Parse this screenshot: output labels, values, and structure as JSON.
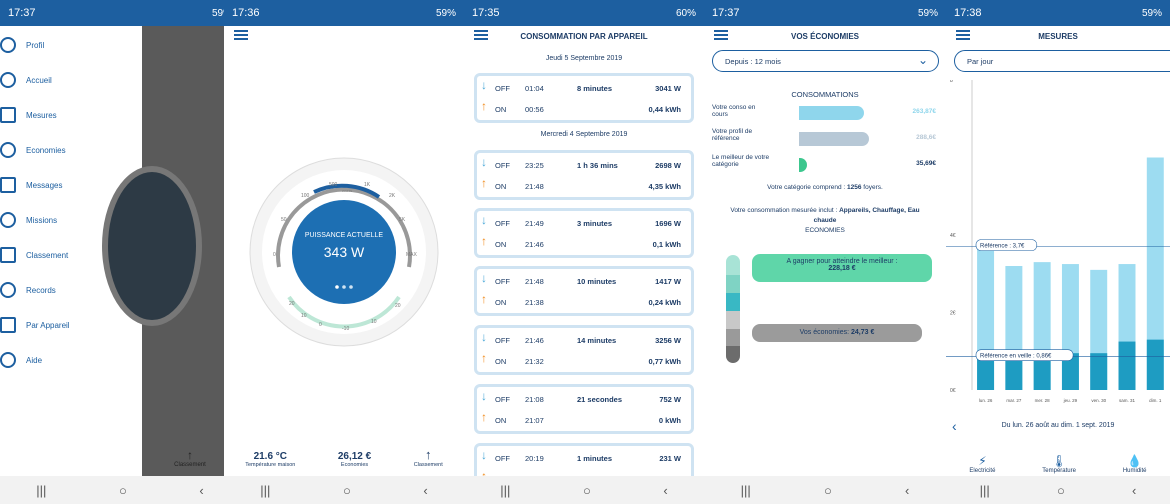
{
  "phones": [
    {
      "status": {
        "time": "17:37",
        "battery": "59%"
      },
      "menu": [
        "Profil",
        "Accueil",
        "Mesures",
        "Economies",
        "Messages",
        "Missions",
        "Classement",
        "Records",
        "Par Appareil",
        "Aide"
      ],
      "dim_label": "Classement"
    },
    {
      "status": {
        "time": "17:36",
        "battery": "59%"
      },
      "dial": {
        "title": "PUISSANCE ACTUELLE",
        "value": "343 W",
        "ticks": [
          "0",
          "50",
          "100",
          "500",
          "1K",
          "2K",
          "5K",
          "MAX"
        ],
        "unit": "WATTS",
        "temp_ticks": [
          "20",
          "10",
          "0",
          "-10",
          "10",
          "20"
        ]
      },
      "footer": [
        {
          "value": "21.6 °C",
          "label": "Température maison"
        },
        {
          "value": "26,12 €",
          "label": "Economies"
        },
        {
          "value": "",
          "label": "Classement"
        }
      ]
    },
    {
      "status": {
        "time": "17:35",
        "battery": "60%"
      },
      "title": "CONSOMMATION PAR APPAREIL",
      "dates": [
        "Jeudi 5 Septembre 2019",
        "Mercredi 4 Septembre 2019"
      ],
      "cards": [
        {
          "off_time": "01:04",
          "on_time": "00:56",
          "duration": "8 minutes",
          "watts": "3041 W",
          "kwh": "0,44 kWh"
        },
        {
          "off_time": "23:25",
          "on_time": "21:48",
          "duration": "1 h 36 mins",
          "watts": "2698 W",
          "kwh": "4,35 kWh"
        },
        {
          "off_time": "21:49",
          "on_time": "21:46",
          "duration": "3 minutes",
          "watts": "1696 W",
          "kwh": "0,1 kWh"
        },
        {
          "off_time": "21:48",
          "on_time": "21:38",
          "duration": "10 minutes",
          "watts": "1417 W",
          "kwh": "0,24 kWh"
        },
        {
          "off_time": "21:46",
          "on_time": "21:32",
          "duration": "14 minutes",
          "watts": "3256 W",
          "kwh": "0,77 kWh"
        },
        {
          "off_time": "21:08",
          "on_time": "21:07",
          "duration": "21 secondes",
          "watts": "752 W",
          "kwh": "0 kWh"
        },
        {
          "off_time": "20:19",
          "on_time": "",
          "duration": "1 minutes",
          "watts": "231 W",
          "kwh": ""
        }
      ],
      "off_label": "OFF",
      "on_label": "ON"
    },
    {
      "status": {
        "time": "17:37",
        "battery": "59%"
      },
      "title": "VOS ÉCONOMIES",
      "period": "Depuis : 12 mois",
      "section": "CONSOMMATIONS",
      "rows": [
        {
          "label": "Votre conso en cours",
          "value": "263,87€"
        },
        {
          "label": "Votre profil de référence",
          "value": "288,6€"
        },
        {
          "label": "Le meilleur de votre catégorie",
          "value": "35,69€"
        }
      ],
      "category_prefix": "Votre catégorie comprend : ",
      "category_count": "1256",
      "category_suffix": " foyers.",
      "included_prefix": "Votre consommation mesurée inclut : ",
      "included_items": "Appareils, Chauffage, Eau chaude",
      "included_last": "ECONOMIES",
      "gain_label": "A gagner pour atteindre le meilleur :",
      "gain_value": "228,18 €",
      "eco_label": "Vos économies:",
      "eco_value": "24,73 €"
    },
    {
      "status": {
        "time": "17:38",
        "battery": "59%"
      },
      "title": "MESURES",
      "select": "Par jour",
      "ref_label": "Référence : 3,7€",
      "veille_label": "Référence en veille : 0,86€",
      "range": "Du lun. 26 août au dim. 1 sept. 2019",
      "tabs": [
        "Electricité",
        "Température",
        "Humidité"
      ]
    }
  ],
  "chart_data": {
    "type": "bar",
    "categories": [
      "lun. 26",
      "mar. 27",
      "mer. 28",
      "jeu. 29",
      "ven. 30",
      "sam. 31",
      "dim. 1"
    ],
    "series": [
      {
        "values": [
          3.7,
          3.2,
          3.3,
          3.25,
          3.1,
          3.25,
          6.0
        ]
      },
      {
        "values": [
          0.95,
          0.75,
          0.8,
          0.95,
          0.95,
          1.25,
          1.3
        ]
      }
    ],
    "ylim": [
      0,
      8
    ],
    "yticks": [
      "0€",
      "2€",
      "4€",
      "8"
    ],
    "reference": 3.7,
    "reference_veille": 0.86
  }
}
